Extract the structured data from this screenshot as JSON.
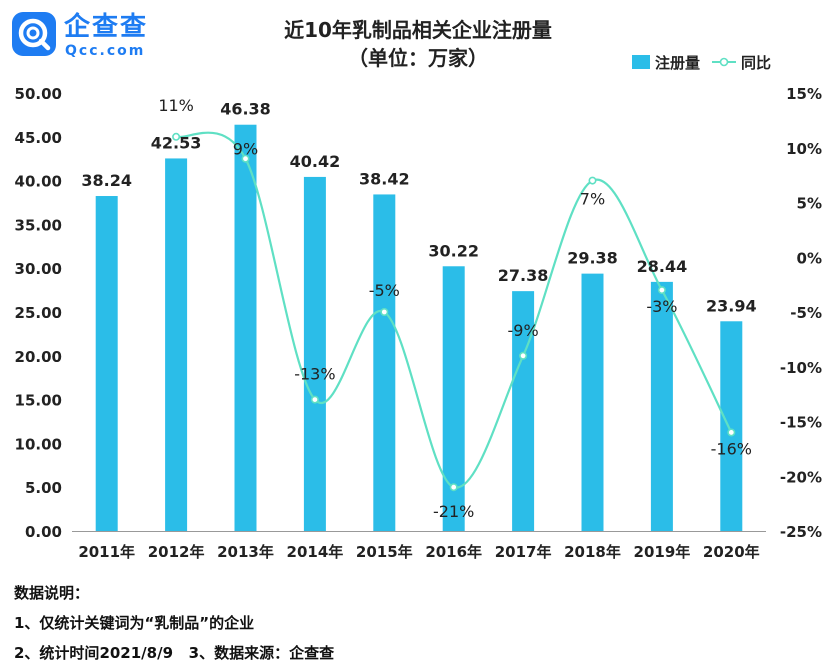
{
  "logo": {
    "cn": "企查查",
    "en": "Qcc.com"
  },
  "chart_data": {
    "type": "bar+line",
    "title": "近10年乳制品相关企业注册量",
    "subtitle": "（单位：万家）",
    "categories": [
      "2011年",
      "2012年",
      "2013年",
      "2014年",
      "2015年",
      "2016年",
      "2017年",
      "2018年",
      "2019年",
      "2020年"
    ],
    "series": [
      {
        "name": "注册量",
        "type": "bar",
        "axis": "left",
        "values": [
          38.24,
          42.53,
          46.38,
          40.42,
          38.42,
          30.22,
          27.38,
          29.38,
          28.44,
          23.94
        ],
        "labels": [
          "38.24",
          "42.53",
          "46.38",
          "40.42",
          "38.42",
          "30.22",
          "27.38",
          "29.38",
          "28.44",
          "23.94"
        ],
        "color": "#2bbde8"
      },
      {
        "name": "同比",
        "type": "line",
        "axis": "right",
        "values": [
          null,
          11,
          9,
          -13,
          -5,
          -21,
          -9,
          7,
          -3,
          -16
        ],
        "labels": [
          "",
          "11%",
          "9%",
          "-13%",
          "-5%",
          "-21%",
          "-9%",
          "7%",
          "-3%",
          "-16%"
        ],
        "color": "#5fe0c4"
      }
    ],
    "y_left": {
      "min": 0,
      "max": 50,
      "step": 5,
      "ticks": [
        "0.00",
        "5.00",
        "10.00",
        "15.00",
        "20.00",
        "25.00",
        "30.00",
        "35.00",
        "40.00",
        "45.00",
        "50.00"
      ]
    },
    "y_right": {
      "min": -25,
      "max": 15,
      "step": 5,
      "ticks": [
        "-25%",
        "-20%",
        "-15%",
        "-10%",
        "-5%",
        "0%",
        "5%",
        "10%",
        "15%"
      ]
    },
    "legend": {
      "position": "top-right"
    },
    "grid": false
  },
  "notes": {
    "heading": "数据说明：",
    "line1": "1、仅统计关键词为“乳制品”的企业",
    "line2": "2、统计时间2021/8/9   3、数据来源：企查查"
  }
}
